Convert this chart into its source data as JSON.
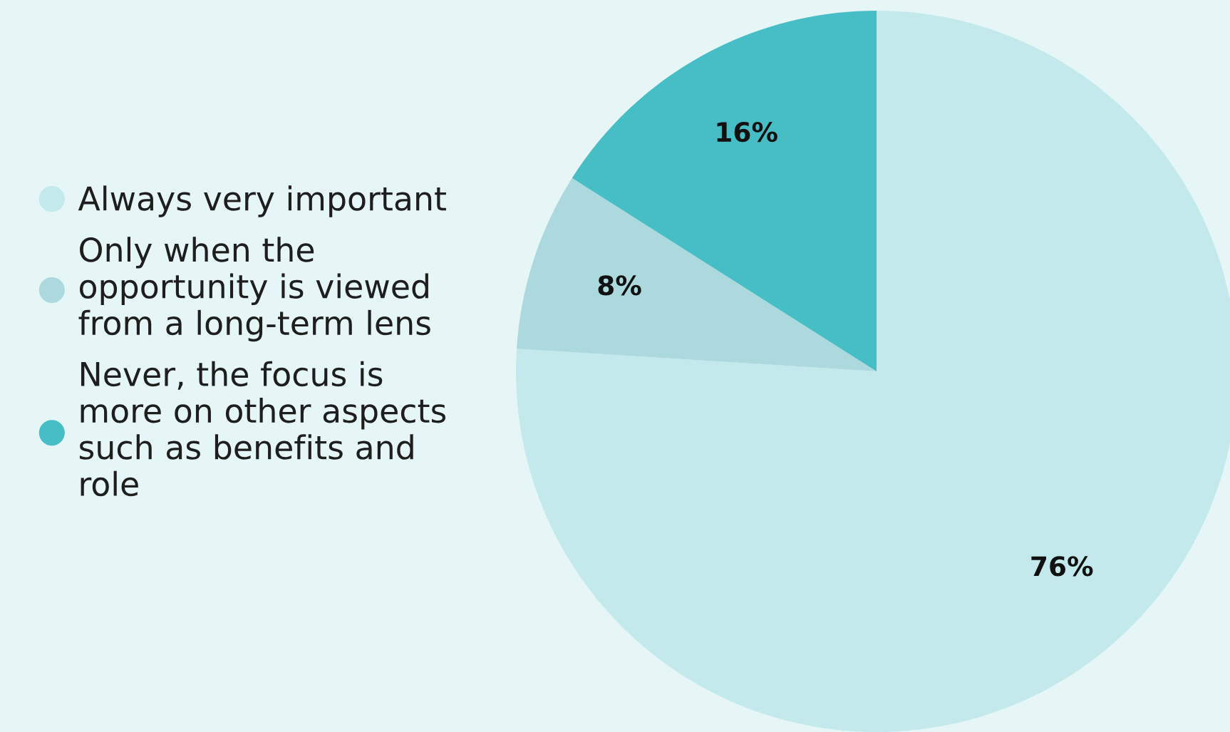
{
  "chart_data": {
    "type": "pie",
    "categories": [
      "Always very important",
      "Only when the opportunity is viewed from a long-term lens",
      "Never, the focus is more on other aspects such as benefits and role"
    ],
    "values": [
      76,
      8,
      16
    ],
    "colors": [
      "#c3e9ed",
      "#acd9de",
      "#47bec6"
    ],
    "value_labels": [
      "76%",
      "8%",
      "16%"
    ],
    "legend": "left"
  }
}
